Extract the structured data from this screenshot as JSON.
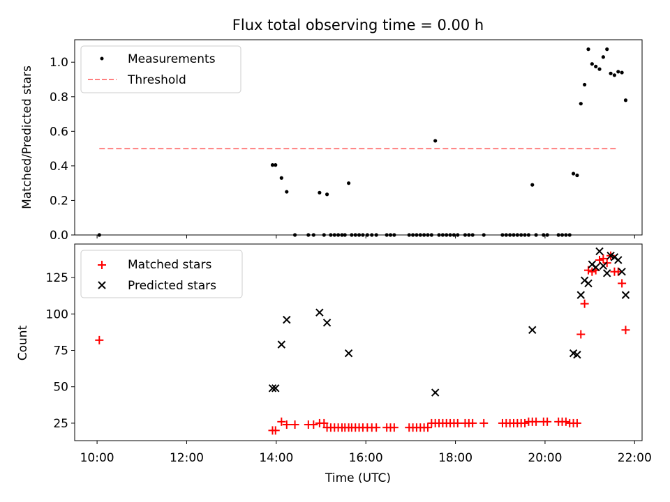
{
  "title": "Flux total observing time = 0.00 h",
  "xlabel": "Time (UTC)",
  "colors": {
    "measurement": "#000000",
    "threshold": "#ff8080",
    "matched": "#ff0000",
    "predicted": "#000000"
  },
  "chart_data": [
    {
      "type": "scatter",
      "ylabel": "Matched/Predicted stars",
      "xlim": [
        "09:30",
        "22:10"
      ],
      "ylim": [
        0,
        1.13
      ],
      "yticks": [
        0.0,
        0.2,
        0.4,
        0.6,
        0.8,
        1.0
      ],
      "ytick_labels": [
        "0.0",
        "0.2",
        "0.4",
        "0.6",
        "0.8",
        "1.0"
      ],
      "legend": {
        "placement": "top-left",
        "entries": [
          "Measurements",
          "Threshold"
        ]
      },
      "threshold": {
        "name": "Threshold",
        "y": 0.5,
        "x_start": "10:03",
        "x_end": "21:37"
      },
      "series": [
        {
          "name": "Measurements",
          "points": [
            [
              "10:03",
              0.0
            ],
            [
              "13:55",
              0.405
            ],
            [
              "13:59",
              0.405
            ],
            [
              "14:07",
              0.33
            ],
            [
              "14:14",
              0.25
            ],
            [
              "14:25",
              0.0
            ],
            [
              "14:43",
              0.0
            ],
            [
              "14:50",
              0.0
            ],
            [
              "14:58",
              0.245
            ],
            [
              "15:04",
              0.0
            ],
            [
              "15:08",
              0.235
            ],
            [
              "15:13",
              0.0
            ],
            [
              "15:18",
              0.0
            ],
            [
              "15:23",
              0.0
            ],
            [
              "15:28",
              0.0
            ],
            [
              "15:32",
              0.0
            ],
            [
              "15:37",
              0.3
            ],
            [
              "15:41",
              0.0
            ],
            [
              "15:46",
              0.0
            ],
            [
              "15:51",
              0.0
            ],
            [
              "15:56",
              0.0
            ],
            [
              "16:02",
              0.0
            ],
            [
              "16:08",
              0.0
            ],
            [
              "16:14",
              0.0
            ],
            [
              "16:28",
              0.0
            ],
            [
              "16:33",
              0.0
            ],
            [
              "16:38",
              0.0
            ],
            [
              "16:58",
              0.0
            ],
            [
              "17:03",
              0.0
            ],
            [
              "17:08",
              0.0
            ],
            [
              "17:13",
              0.0
            ],
            [
              "17:18",
              0.0
            ],
            [
              "17:23",
              0.0
            ],
            [
              "17:28",
              0.0
            ],
            [
              "17:33",
              0.545
            ],
            [
              "17:38",
              0.0
            ],
            [
              "17:43",
              0.0
            ],
            [
              "17:48",
              0.0
            ],
            [
              "17:53",
              0.0
            ],
            [
              "17:58",
              0.0
            ],
            [
              "18:03",
              0.0
            ],
            [
              "18:13",
              0.0
            ],
            [
              "18:18",
              0.0
            ],
            [
              "18:23",
              0.0
            ],
            [
              "18:38",
              0.0
            ],
            [
              "19:03",
              0.0
            ],
            [
              "19:08",
              0.0
            ],
            [
              "19:13",
              0.0
            ],
            [
              "19:18",
              0.0
            ],
            [
              "19:23",
              0.0
            ],
            [
              "19:28",
              0.0
            ],
            [
              "19:33",
              0.0
            ],
            [
              "19:38",
              0.0
            ],
            [
              "19:43",
              0.29
            ],
            [
              "19:48",
              0.0
            ],
            [
              "19:58",
              0.0
            ],
            [
              "20:03",
              0.0
            ],
            [
              "20:18",
              0.0
            ],
            [
              "20:23",
              0.0
            ],
            [
              "20:28",
              0.0
            ],
            [
              "20:33",
              0.0
            ],
            [
              "20:38",
              0.355
            ],
            [
              "20:43",
              0.345
            ],
            [
              "20:48",
              0.76
            ],
            [
              "20:53",
              0.87
            ],
            [
              "20:58",
              1.075
            ],
            [
              "21:03",
              0.99
            ],
            [
              "21:08",
              0.975
            ],
            [
              "21:13",
              0.96
            ],
            [
              "21:18",
              1.03
            ],
            [
              "21:23",
              1.075
            ],
            [
              "21:28",
              0.935
            ],
            [
              "21:33",
              0.925
            ],
            [
              "21:38",
              0.945
            ],
            [
              "21:43",
              0.94
            ],
            [
              "21:48",
              0.78
            ]
          ]
        }
      ]
    },
    {
      "type": "scatter",
      "ylabel": "Count",
      "xlim": [
        "09:30",
        "22:10"
      ],
      "ylim": [
        13,
        148
      ],
      "yticks": [
        25,
        50,
        75,
        100,
        125
      ],
      "ytick_labels": [
        "25",
        "50",
        "75",
        "100",
        "125"
      ],
      "xticks": [
        "10:00",
        "12:00",
        "14:00",
        "16:00",
        "18:00",
        "20:00",
        "22:00"
      ],
      "legend": {
        "placement": "top-left",
        "entries": [
          "Matched stars",
          "Predicted stars"
        ]
      },
      "series": [
        {
          "name": "Matched stars",
          "marker": "plus",
          "points": [
            [
              "10:03",
              82
            ],
            [
              "13:55",
              20
            ],
            [
              "13:59",
              20
            ],
            [
              "14:07",
              26
            ],
            [
              "14:14",
              24
            ],
            [
              "14:25",
              24
            ],
            [
              "14:43",
              24
            ],
            [
              "14:50",
              24
            ],
            [
              "14:58",
              25
            ],
            [
              "15:04",
              25
            ],
            [
              "15:08",
              22
            ],
            [
              "15:13",
              22
            ],
            [
              "15:18",
              22
            ],
            [
              "15:23",
              22
            ],
            [
              "15:28",
              22
            ],
            [
              "15:32",
              22
            ],
            [
              "15:37",
              22
            ],
            [
              "15:41",
              22
            ],
            [
              "15:46",
              22
            ],
            [
              "15:51",
              22
            ],
            [
              "15:56",
              22
            ],
            [
              "16:02",
              22
            ],
            [
              "16:08",
              22
            ],
            [
              "16:14",
              22
            ],
            [
              "16:28",
              22
            ],
            [
              "16:33",
              22
            ],
            [
              "16:38",
              22
            ],
            [
              "16:58",
              22
            ],
            [
              "17:03",
              22
            ],
            [
              "17:08",
              22
            ],
            [
              "17:13",
              22
            ],
            [
              "17:18",
              22
            ],
            [
              "17:23",
              22
            ],
            [
              "17:28",
              25
            ],
            [
              "17:33",
              25
            ],
            [
              "17:38",
              25
            ],
            [
              "17:43",
              25
            ],
            [
              "17:48",
              25
            ],
            [
              "17:53",
              25
            ],
            [
              "17:58",
              25
            ],
            [
              "18:03",
              25
            ],
            [
              "18:13",
              25
            ],
            [
              "18:18",
              25
            ],
            [
              "18:23",
              25
            ],
            [
              "18:38",
              25
            ],
            [
              "19:03",
              25
            ],
            [
              "19:08",
              25
            ],
            [
              "19:13",
              25
            ],
            [
              "19:18",
              25
            ],
            [
              "19:23",
              25
            ],
            [
              "19:28",
              25
            ],
            [
              "19:33",
              25
            ],
            [
              "19:38",
              26
            ],
            [
              "19:43",
              26
            ],
            [
              "19:48",
              26
            ],
            [
              "19:58",
              26
            ],
            [
              "20:03",
              26
            ],
            [
              "20:18",
              26
            ],
            [
              "20:23",
              26
            ],
            [
              "20:28",
              26
            ],
            [
              "20:33",
              25
            ],
            [
              "20:38",
              25
            ],
            [
              "20:43",
              25
            ],
            [
              "20:48",
              86
            ],
            [
              "20:53",
              107
            ],
            [
              "20:58",
              130
            ],
            [
              "21:03",
              129
            ],
            [
              "21:08",
              130
            ],
            [
              "21:13",
              137
            ],
            [
              "21:18",
              138
            ],
            [
              "21:23",
              135
            ],
            [
              "21:28",
              140
            ],
            [
              "21:33",
              129
            ],
            [
              "21:38",
              129
            ],
            [
              "21:43",
              121
            ],
            [
              "21:48",
              89
            ]
          ]
        },
        {
          "name": "Predicted stars",
          "marker": "x",
          "points": [
            [
              "13:55",
              49
            ],
            [
              "13:59",
              49
            ],
            [
              "14:07",
              79
            ],
            [
              "14:14",
              96
            ],
            [
              "14:58",
              101
            ],
            [
              "15:08",
              94
            ],
            [
              "15:37",
              73
            ],
            [
              "17:33",
              46
            ],
            [
              "19:43",
              89
            ],
            [
              "20:38",
              73
            ],
            [
              "20:43",
              72
            ],
            [
              "20:48",
              113
            ],
            [
              "20:53",
              123
            ],
            [
              "20:58",
              121
            ],
            [
              "21:03",
              134
            ],
            [
              "21:08",
              132
            ],
            [
              "21:13",
              143
            ],
            [
              "21:18",
              133
            ],
            [
              "21:23",
              128
            ],
            [
              "21:28",
              140
            ],
            [
              "21:33",
              139
            ],
            [
              "21:38",
              137
            ],
            [
              "21:43",
              129
            ],
            [
              "21:48",
              113
            ]
          ]
        }
      ]
    }
  ]
}
